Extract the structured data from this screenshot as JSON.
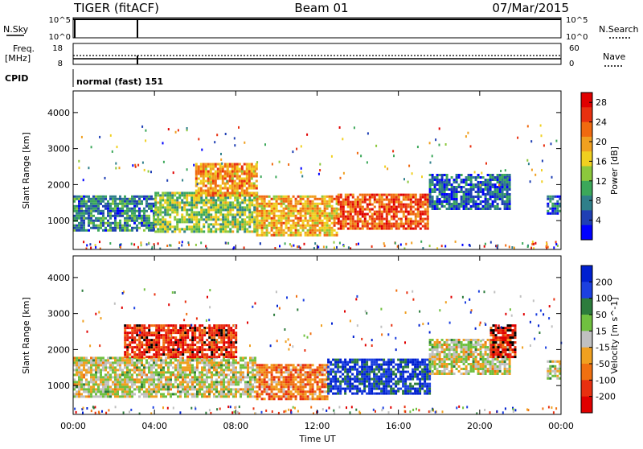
{
  "header": {
    "radar": "TIGER (fitACF)",
    "beam": "Beam 01",
    "date": "07/Mar/2015"
  },
  "strips": {
    "nsky_label": "N.Sky",
    "nsky_ticks": [
      "10^5",
      "10^0"
    ],
    "nsearch_label": "N.Search",
    "nsearch_ticks": [
      "10^5",
      "10^0"
    ],
    "freq_label_1": "Freq.",
    "freq_label_2": "[MHz]",
    "freq_ticks": [
      "18",
      "8"
    ],
    "nave_label": "Nave",
    "nave_ticks": [
      "60",
      "0"
    ],
    "cpid_label": "CPID",
    "cpid_value": "normal (fast) 151"
  },
  "chart_data": [
    {
      "type": "heatmap",
      "panel": "power",
      "title": "",
      "xlabel": "",
      "ylabel": "Slant Range [km]",
      "xlim": [
        "00:00",
        "00:00"
      ],
      "ylim": [
        200,
        4600
      ],
      "x_ticks": [
        "00:00",
        "04:00",
        "08:00",
        "12:00",
        "16:00",
        "20:00",
        "00:00"
      ],
      "y_ticks": [
        "1000",
        "2000",
        "3000",
        "4000"
      ],
      "colorbar": {
        "label": "Power [dB]",
        "ticks": [
          "4",
          "8",
          "12",
          "16",
          "20",
          "24",
          "28"
        ],
        "colors": [
          "#0000ff",
          "#1f3fb4",
          "#2f7f8a",
          "#3ca85a",
          "#8cc83c",
          "#f0d020",
          "#f0a020",
          "#f06a10",
          "#e83010",
          "#e00000"
        ],
        "range": [
          0,
          30
        ]
      },
      "echo_regions": [
        {
          "t_start": 0.0,
          "t_end": 4.0,
          "range_low": 700,
          "range_high": 1700,
          "mean_value": 8
        },
        {
          "t_start": 4.0,
          "t_end": 9.0,
          "range_low": 700,
          "range_high": 1800,
          "mean_value": 13
        },
        {
          "t_start": 6.0,
          "t_end": 9.0,
          "range_low": 1700,
          "range_high": 2600,
          "mean_value": 20
        },
        {
          "t_start": 9.0,
          "t_end": 13.0,
          "range_low": 600,
          "range_high": 1700,
          "mean_value": 19
        },
        {
          "t_start": 13.0,
          "t_end": 17.5,
          "range_low": 800,
          "range_high": 1750,
          "mean_value": 24
        },
        {
          "t_start": 17.5,
          "t_end": 21.5,
          "range_low": 1300,
          "range_high": 2300,
          "mean_value": 6
        },
        {
          "t_start": 23.3,
          "t_end": 24.0,
          "range_low": 1200,
          "range_high": 1700,
          "mean_value": 6
        }
      ]
    },
    {
      "type": "heatmap",
      "panel": "velocity",
      "title": "",
      "xlabel": "Time UT",
      "ylabel": "Slant Range [km]",
      "xlim": [
        "00:00",
        "00:00"
      ],
      "ylim": [
        200,
        4600
      ],
      "x_ticks": [
        "00:00",
        "04:00",
        "08:00",
        "12:00",
        "16:00",
        "20:00",
        "00:00"
      ],
      "y_ticks": [
        "1000",
        "2000",
        "3000",
        "4000"
      ],
      "colorbar": {
        "label": "Velocity [m s^-1]",
        "ticks": [
          "200",
          "100",
          "50",
          "15",
          "-15",
          "-50",
          "-100",
          "-200"
        ],
        "colors": [
          "#0020d0",
          "#1c40e0",
          "#2c7c3c",
          "#70c040",
          "#c0c0c0",
          "#f0a020",
          "#f07010",
          "#e83010",
          "#e00000"
        ],
        "range": [
          -250,
          250
        ]
      },
      "echo_regions": [
        {
          "t_start": 0.0,
          "t_end": 9.0,
          "range_low": 700,
          "range_high": 1800,
          "mean_value": 0
        },
        {
          "t_start": 2.5,
          "t_end": 8.0,
          "range_low": 1800,
          "range_high": 2700,
          "mean_value": -180
        },
        {
          "t_start": 9.0,
          "t_end": 12.5,
          "range_low": 600,
          "range_high": 1600,
          "mean_value": -100
        },
        {
          "t_start": 12.5,
          "t_end": 17.5,
          "range_low": 800,
          "range_high": 1750,
          "mean_value": 180
        },
        {
          "t_start": 17.5,
          "t_end": 21.5,
          "range_low": 1300,
          "range_high": 2300,
          "mean_value": 0
        },
        {
          "t_start": 20.5,
          "t_end": 21.8,
          "range_low": 1800,
          "range_high": 2700,
          "mean_value": -200
        },
        {
          "t_start": 23.3,
          "t_end": 24.0,
          "range_low": 1200,
          "range_high": 1700,
          "mean_value": 0
        }
      ]
    }
  ]
}
